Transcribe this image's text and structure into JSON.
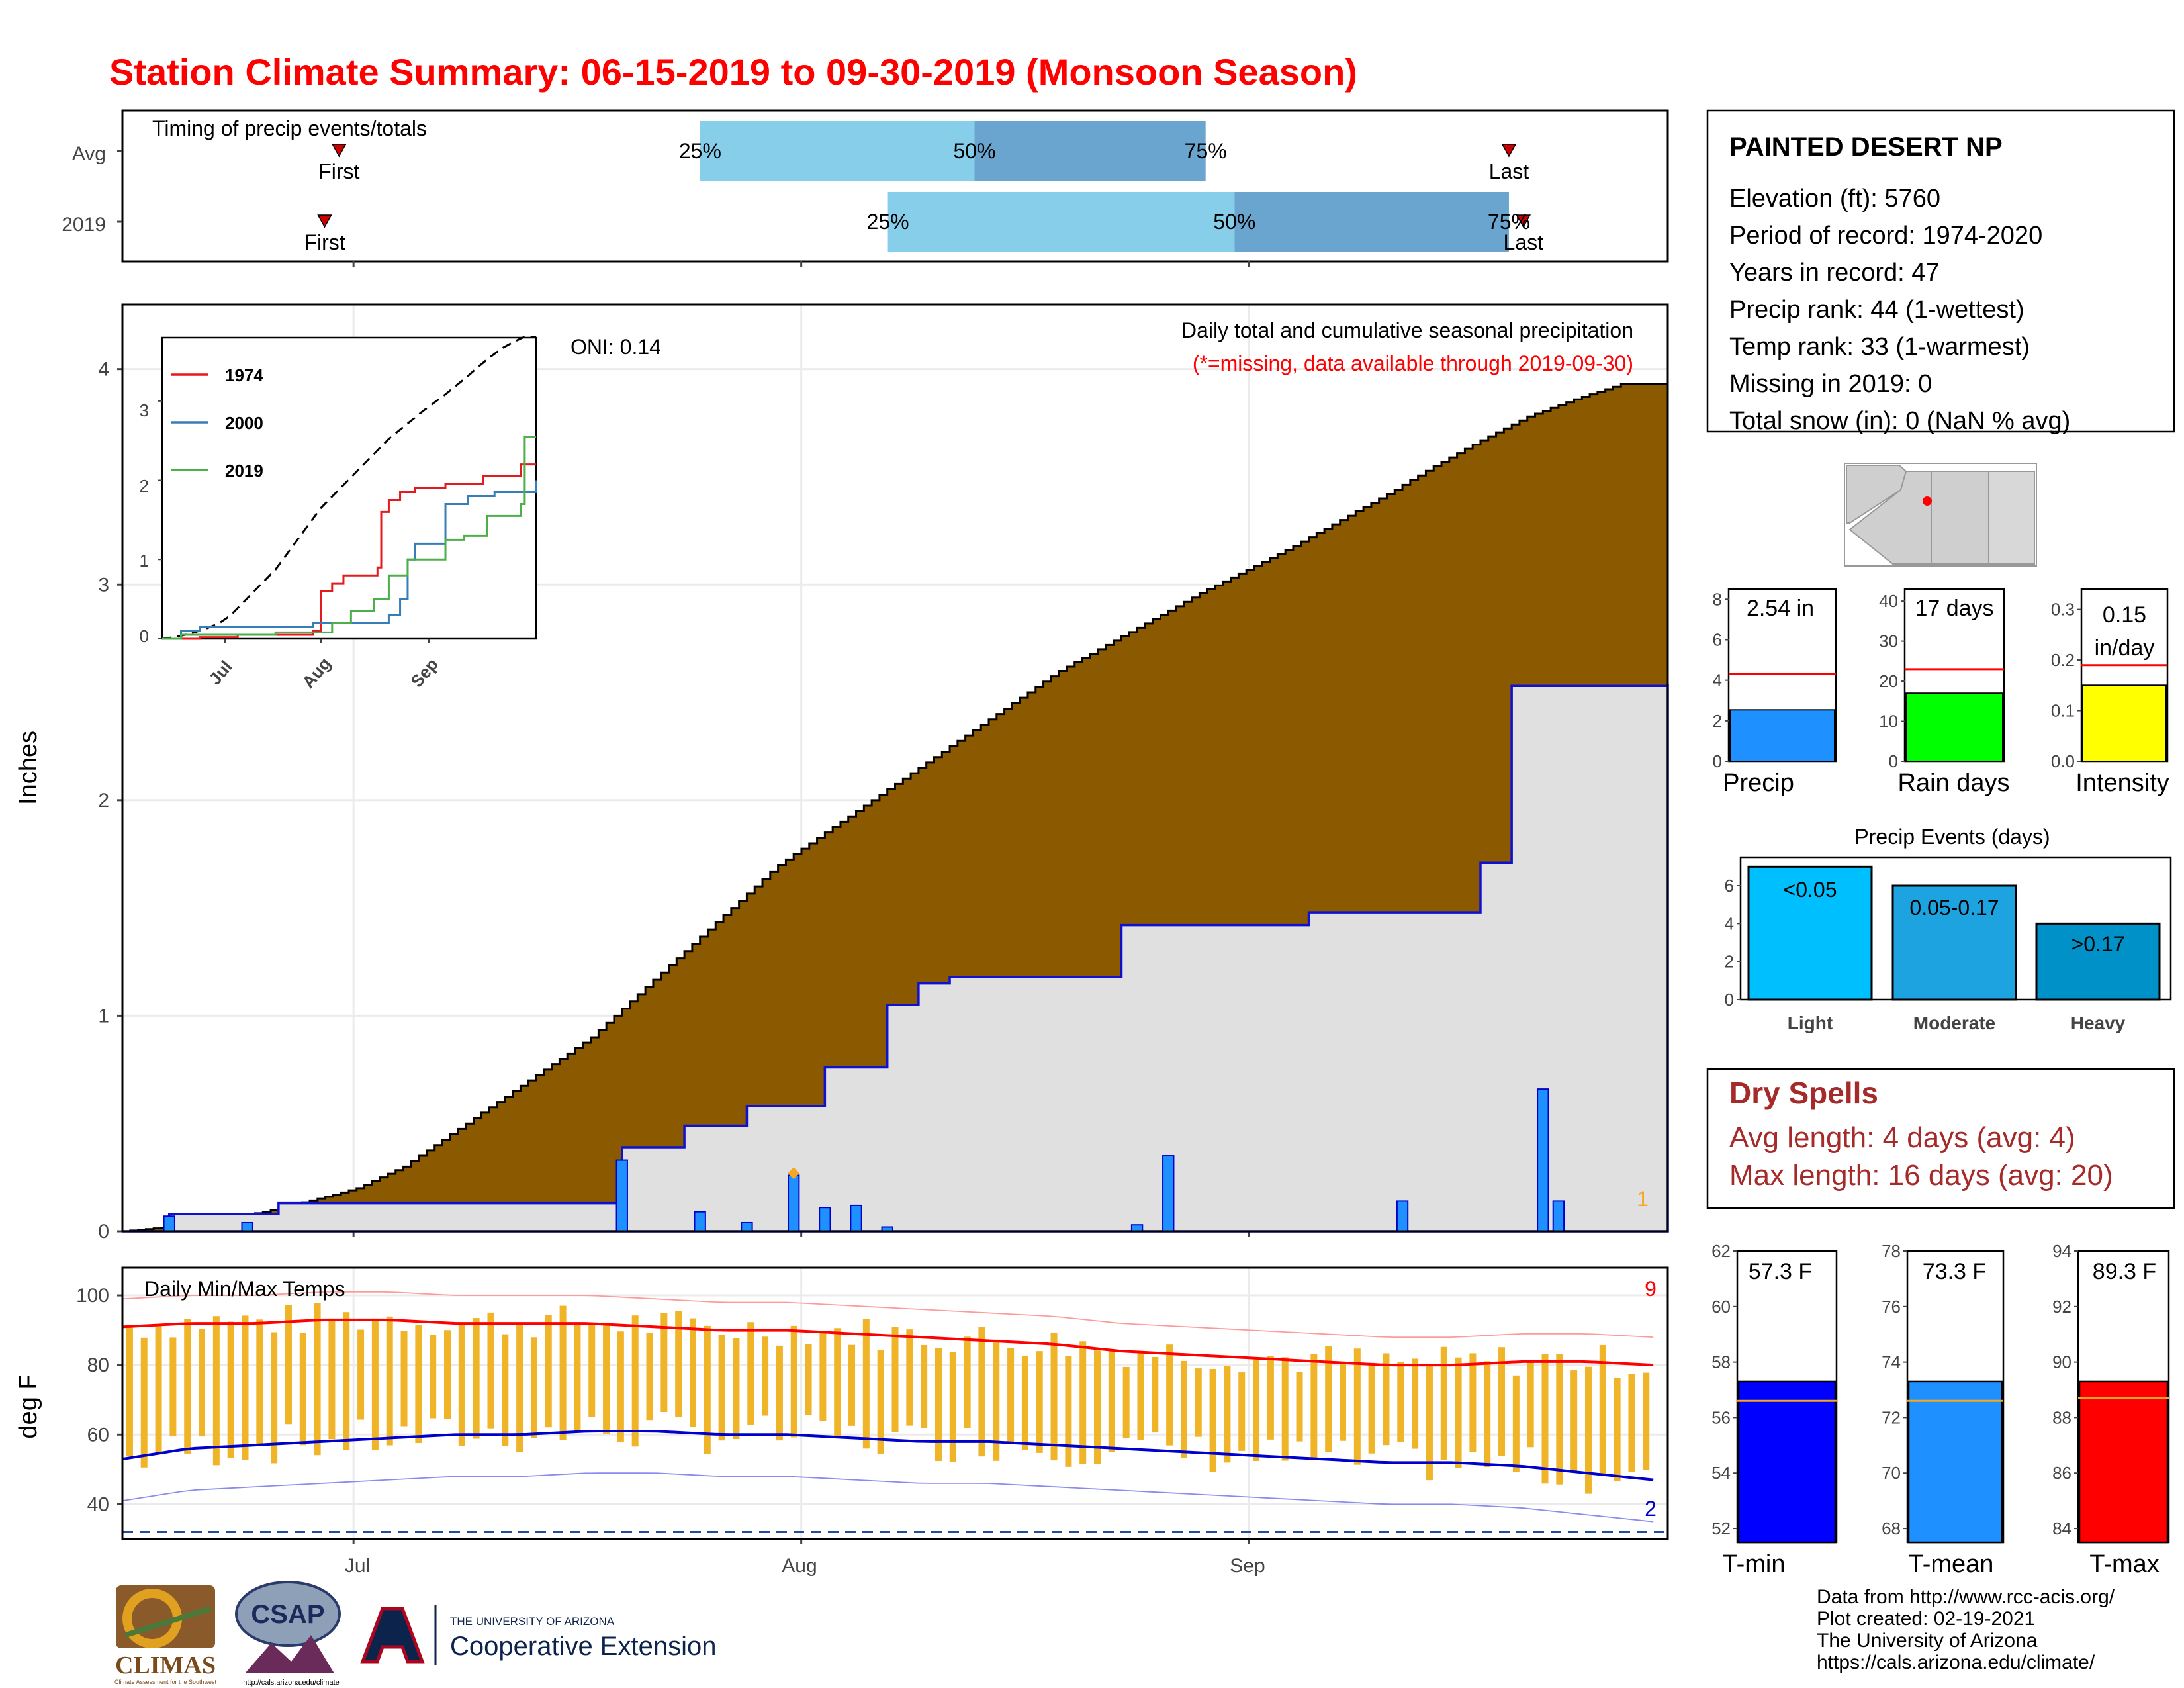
{
  "title": "Station Climate Summary: 06-15-2019 to 09-30-2019 (Monsoon Season)",
  "timing": {
    "title": "Timing of precip events/totals",
    "rows": [
      {
        "label": "Avg",
        "first": "First",
        "last": "Last",
        "p25": "25%",
        "p50": "50%",
        "p75": "75%"
      },
      {
        "label": "2019",
        "first": "First",
        "last": "Last",
        "p25": "25%",
        "p50": "50%",
        "p75": "75%"
      }
    ]
  },
  "main": {
    "ylabel": "Inches",
    "oni": "ONI: 0.14",
    "title": "Daily total and cumulative seasonal precipitation",
    "note": "(*=missing, data available through 2019-09-30)",
    "yticks": [
      "0",
      "1",
      "2",
      "3",
      "4"
    ],
    "missing_count": "1"
  },
  "inset": {
    "legend": [
      "1974",
      "2000",
      "2019"
    ],
    "yticks": [
      "0",
      "1",
      "2",
      "3"
    ],
    "xticks": [
      "Jul",
      "Aug",
      "Sep"
    ]
  },
  "temps": {
    "title": "Daily Min/Max Temps",
    "ylabel": "deg F",
    "yticks": [
      "40",
      "60",
      "80",
      "100"
    ],
    "count_hot": "9",
    "count_cold": "2"
  },
  "xticks": [
    "Jul",
    "Aug",
    "Sep"
  ],
  "station": {
    "name": "PAINTED DESERT NP",
    "lines": [
      "Elevation (ft): 5760",
      "Period of record: 1974-2020",
      "Years in record: 47",
      "Precip rank: 44 (1-wettest)",
      "Temp rank: 33 (1-warmest)",
      "Missing in 2019: 0",
      "Total snow (in): 0 (NaN % avg)"
    ]
  },
  "mini_bars": [
    {
      "label": "Precip",
      "value_text": "2.54 in",
      "yticks": [
        "0",
        "2",
        "4",
        "6",
        "8"
      ]
    },
    {
      "label": "Rain days",
      "value_text": "17 days",
      "yticks": [
        "0",
        "10",
        "20",
        "30",
        "40"
      ]
    },
    {
      "label": "Intensity",
      "value_text_1": "0.15",
      "value_text_2": "in/day",
      "yticks": [
        "0.0",
        "0.1",
        "0.2",
        "0.3"
      ]
    }
  ],
  "events": {
    "title": "Precip Events (days)",
    "yticks": [
      "0",
      "2",
      "4",
      "6"
    ],
    "bars": [
      {
        "category": "Light",
        "text": "<0.05"
      },
      {
        "category": "Moderate",
        "text": "0.05-0.17"
      },
      {
        "category": "Heavy",
        "text": ">0.17"
      }
    ]
  },
  "dry_spells": {
    "title": "Dry Spells",
    "avg": "Avg length: 4 days (avg: 4)",
    "max": "Max length: 16 days (avg: 20)"
  },
  "temp_bars": [
    {
      "label": "T-min",
      "value_text": "57.3 F",
      "yticks": [
        "52",
        "54",
        "56",
        "58",
        "60",
        "62"
      ]
    },
    {
      "label": "T-mean",
      "value_text": "73.3 F",
      "yticks": [
        "68",
        "70",
        "72",
        "74",
        "76",
        "78"
      ]
    },
    {
      "label": "T-max",
      "value_text": "89.3 F",
      "yticks": [
        "84",
        "86",
        "88",
        "90",
        "92",
        "94"
      ]
    }
  ],
  "footer": {
    "lines": [
      "Data from http://www.rcc-acis.org/",
      "Plot created: 02-19-2021",
      "The University of Arizona",
      "https://cals.arizona.edu/climate/"
    ],
    "logo_climas": "CLIMAS",
    "logo_climas_sub": "Climate Assessment for the Southwest",
    "logo_csap": "CSAP",
    "logo_csap_url": "http://cals.arizona.edu/climate",
    "ua_line1": "THE UNIVERSITY OF ARIZONA",
    "ua_line2": "Cooperative Extension"
  },
  "colors": {
    "brown": "#8b5a00",
    "grey": "#e0e0e0",
    "blue": "#1e90ff",
    "tempbar": "#f0b429",
    "light": "#87ceeb",
    "mid": "#6aa5cf"
  },
  "chart_data": [
    {
      "type": "bar",
      "name": "timing",
      "categories": [
        "Avg",
        "2019"
      ],
      "series": [
        {
          "name": "25%-50%",
          "start_dates": [
            "2019-07-25",
            "2019-08-07"
          ],
          "end_dates": [
            "2019-08-13",
            "2019-08-31"
          ]
        },
        {
          "name": "50%-75%",
          "start_dates": [
            "2019-08-13",
            "2019-08-31"
          ],
          "end_dates": [
            "2019-08-29",
            "2019-09-19"
          ]
        }
      ],
      "first": [
        "2019-06-30",
        "2019-06-29"
      ],
      "last": [
        "2019-09-19",
        "2019-09-20"
      ]
    },
    {
      "type": "area",
      "name": "cumulative precipitation",
      "x_start": "2019-06-15",
      "x_end": "2019-09-30",
      "ylim": [
        0,
        4.3
      ],
      "avg_cumulative": [
        [
          0,
          0.0
        ],
        [
          6,
          0.02
        ],
        [
          12,
          0.05
        ],
        [
          18,
          0.09
        ],
        [
          24,
          0.14
        ],
        [
          30,
          0.2
        ],
        [
          36,
          0.3
        ],
        [
          42,
          0.45
        ],
        [
          48,
          0.6
        ],
        [
          54,
          0.75
        ],
        [
          60,
          0.9
        ],
        [
          66,
          1.1
        ],
        [
          72,
          1.3
        ],
        [
          78,
          1.5
        ],
        [
          84,
          1.7
        ],
        [
          90,
          1.85
        ],
        [
          96,
          2.0
        ],
        [
          102,
          2.15
        ],
        [
          108,
          2.3
        ],
        [
          114,
          2.45
        ],
        [
          120,
          2.6
        ],
        [
          126,
          2.72
        ],
        [
          132,
          2.84
        ],
        [
          138,
          2.96
        ],
        [
          144,
          3.07
        ],
        [
          150,
          3.18
        ],
        [
          156,
          3.3
        ],
        [
          162,
          3.42
        ],
        [
          168,
          3.55
        ],
        [
          174,
          3.67
        ],
        [
          180,
          3.78
        ],
        [
          186,
          3.86
        ],
        [
          192,
          3.93
        ],
        [
          198,
          3.93
        ]
      ],
      "y2019_cumulative": [
        [
          0,
          0.0
        ],
        [
          6,
          0.08
        ],
        [
          20,
          0.13
        ],
        [
          64,
          0.13
        ],
        [
          64,
          0.39
        ],
        [
          72,
          0.49
        ],
        [
          80,
          0.58
        ],
        [
          90,
          0.76
        ],
        [
          98,
          1.05
        ],
        [
          102,
          1.15
        ],
        [
          106,
          1.18
        ],
        [
          128,
          1.18
        ],
        [
          128,
          1.42
        ],
        [
          152,
          1.48
        ],
        [
          174,
          1.71
        ],
        [
          178,
          2.53
        ],
        [
          198,
          2.54
        ]
      ],
      "daily_2019": [
        [
          6,
          0.07
        ],
        [
          16,
          0.04
        ],
        [
          64,
          0.33
        ],
        [
          74,
          0.09
        ],
        [
          80,
          0.04
        ],
        [
          86,
          0.26
        ],
        [
          90,
          0.11
        ],
        [
          94,
          0.12
        ],
        [
          98,
          0.02
        ],
        [
          130,
          0.03
        ],
        [
          134,
          0.35
        ],
        [
          164,
          0.14
        ],
        [
          182,
          0.66
        ],
        [
          184,
          0.14
        ]
      ]
    },
    {
      "type": "line",
      "name": "daily temperature",
      "ylim": [
        30,
        108
      ],
      "avg_max": [
        91,
        92,
        92,
        93,
        93,
        92,
        92,
        92,
        91,
        90,
        90,
        89,
        88,
        87,
        86,
        84,
        83,
        82,
        81,
        80,
        80,
        81,
        81,
        80
      ],
      "avg_min": [
        53,
        56,
        57,
        58,
        59,
        60,
        60,
        61,
        61,
        60,
        60,
        59,
        58,
        58,
        57,
        56,
        55,
        54,
        53,
        52,
        52,
        51,
        49,
        47
      ]
    },
    {
      "type": "bar",
      "name": "season totals",
      "categories": [
        "Precip",
        "Rain days",
        "Intensity"
      ],
      "values": [
        2.54,
        17,
        0.15
      ],
      "avg": [
        4.3,
        23,
        0.19
      ],
      "ylim": [
        [
          0,
          8.5
        ],
        [
          0,
          43
        ],
        [
          0,
          0.34
        ]
      ]
    },
    {
      "type": "bar",
      "name": "precip events",
      "categories": [
        "Light",
        "Moderate",
        "Heavy"
      ],
      "values": [
        7,
        6,
        4
      ],
      "ylim": [
        0,
        7.5
      ]
    },
    {
      "type": "bar",
      "name": "temperature means",
      "categories": [
        "T-min",
        "T-mean",
        "T-max"
      ],
      "values": [
        57.3,
        73.3,
        89.3
      ],
      "avg": [
        56.6,
        72.6,
        88.7
      ],
      "ylim": [
        [
          51.5,
          62
        ],
        [
          67.5,
          78
        ],
        [
          83.5,
          94
        ]
      ]
    }
  ]
}
